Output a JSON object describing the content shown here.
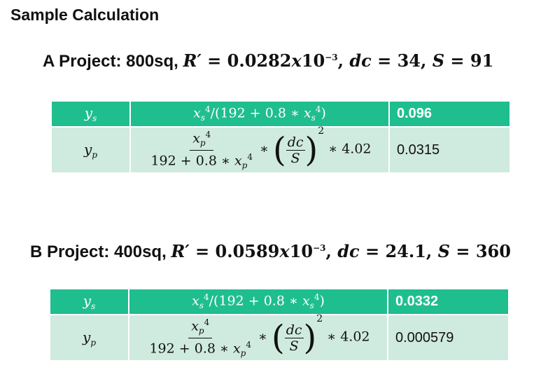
{
  "title": "Sample Calculation",
  "projects": [
    {
      "label": "A Project: 800sq,",
      "R": "0.0282",
      "exp": "−3",
      "dc": "34",
      "S": "91",
      "ys_value": "0.096",
      "yp_value": "0.0315"
    },
    {
      "label": "B Project: 400sq,",
      "R": "0.0589",
      "exp": "−3",
      "dc": "24.1",
      "S": "360",
      "ys_value": "0.0332",
      "yp_value": "0.000579"
    }
  ],
  "formula": {
    "ys_text": "/(192 + 0.8 ∗ ",
    "yp_den": "192 + 0.8 ∗ ",
    "yp_mult": "∗ 4.02"
  }
}
